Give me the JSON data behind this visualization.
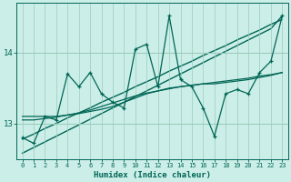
{
  "title": "",
  "xlabel": "Humidex (Indice chaleur)",
  "background_color": "#cceee8",
  "grid_color": "#99ccbb",
  "line_color": "#006655",
  "x_values": [
    0,
    1,
    2,
    3,
    4,
    5,
    6,
    7,
    8,
    9,
    10,
    11,
    12,
    13,
    14,
    15,
    16,
    17,
    18,
    19,
    20,
    21,
    22,
    23
  ],
  "y_zigzag": [
    12.8,
    12.72,
    13.1,
    13.05,
    13.7,
    13.52,
    13.72,
    13.42,
    13.3,
    13.22,
    14.05,
    14.12,
    13.52,
    14.52,
    13.62,
    13.52,
    13.22,
    12.82,
    13.42,
    13.48,
    13.42,
    13.72,
    13.88,
    14.52
  ],
  "y_smooth1": [
    13.1,
    13.1,
    13.1,
    13.1,
    13.12,
    13.14,
    13.17,
    13.2,
    13.24,
    13.3,
    13.36,
    13.42,
    13.46,
    13.5,
    13.52,
    13.54,
    13.56,
    13.56,
    13.58,
    13.6,
    13.62,
    13.65,
    13.68,
    13.72
  ],
  "y_smooth2": [
    13.05,
    13.05,
    13.07,
    13.09,
    13.12,
    13.15,
    13.19,
    13.24,
    13.29,
    13.34,
    13.39,
    13.43,
    13.46,
    13.49,
    13.52,
    13.54,
    13.56,
    13.58,
    13.6,
    13.62,
    13.64,
    13.67,
    13.69,
    13.72
  ],
  "y_linear1": [
    12.78,
    12.85,
    12.93,
    13.0,
    13.08,
    13.15,
    13.22,
    13.3,
    13.37,
    13.44,
    13.52,
    13.59,
    13.66,
    13.74,
    13.81,
    13.88,
    13.96,
    14.03,
    14.1,
    14.18,
    14.25,
    14.32,
    14.4,
    14.47
  ],
  "y_linear2": [
    12.58,
    12.66,
    12.74,
    12.82,
    12.9,
    12.98,
    13.06,
    13.14,
    13.22,
    13.3,
    13.38,
    13.46,
    13.54,
    13.62,
    13.7,
    13.78,
    13.86,
    13.94,
    14.02,
    14.1,
    14.18,
    14.26,
    14.34,
    14.52
  ],
  "yticks": [
    13,
    14
  ],
  "ylim": [
    12.5,
    14.7
  ],
  "xlim": [
    -0.5,
    23.5
  ]
}
